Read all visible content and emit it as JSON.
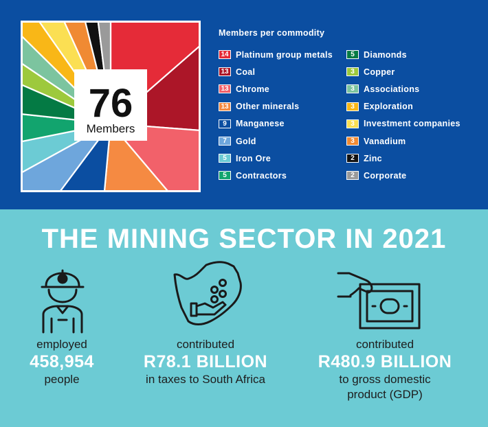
{
  "chart_data": {
    "type": "pie",
    "center_label": {
      "value": "76",
      "text": "Members"
    },
    "title": "Members per commodity",
    "slices": [
      {
        "label": "Platinum group metals",
        "value": 14,
        "color": "#e52b38"
      },
      {
        "label": "Coal",
        "value": 13,
        "color": "#ac1628"
      },
      {
        "label": "Chrome",
        "value": 13,
        "color": "#f2616a"
      },
      {
        "label": "Other minerals",
        "value": 13,
        "color": "#f58a42"
      },
      {
        "label": "Manganese",
        "value": 9,
        "color": "#0b4ea1"
      },
      {
        "label": "Gold",
        "value": 7,
        "color": "#6ea6dc"
      },
      {
        "label": "Iron Ore",
        "value": 5,
        "color": "#6ccbd4"
      },
      {
        "label": "Contractors",
        "value": 5,
        "color": "#12a46e"
      },
      {
        "label": "Diamonds",
        "value": 5,
        "color": "#047a44"
      },
      {
        "label": "Copper",
        "value": 3,
        "color": "#9dc93d"
      },
      {
        "label": "Associations",
        "value": 3,
        "color": "#7cc49f"
      },
      {
        "label": "Exploration",
        "value": 3,
        "color": "#f9b717"
      },
      {
        "label": "Investment companies",
        "value": 3,
        "color": "#fbdf53"
      },
      {
        "label": "Vanadium",
        "value": 3,
        "color": "#f08a33"
      },
      {
        "label": "Zinc",
        "value": 2,
        "color": "#111111"
      },
      {
        "label": "Corporate",
        "value": 2,
        "color": "#9a9a9a"
      }
    ]
  },
  "headline": "THE MINING SECTOR IN 2021",
  "stats": [
    {
      "pre": "employed",
      "big": "458,954",
      "post": "people",
      "icon": "miner-icon"
    },
    {
      "pre": "contributed",
      "big": "R78.1 BILLION",
      "post": "in taxes to South Africa",
      "icon": "south-africa-map-icon"
    },
    {
      "pre": "contributed",
      "big": "R480.9 BILLION",
      "post": "to gross domestic product (GDP)",
      "icon": "banknote-hand-icon"
    }
  ]
}
